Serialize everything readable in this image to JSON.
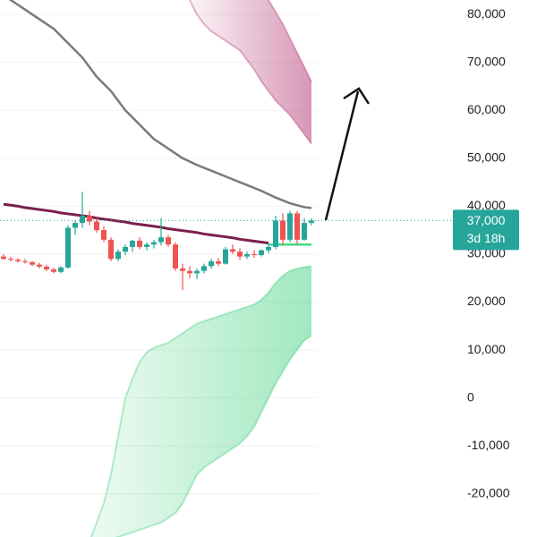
{
  "chart_data": {
    "type": "candlestick",
    "ylim": [
      -29000,
      83000
    ],
    "yticks": [
      {
        "value": -20000,
        "label": "-20,000"
      },
      {
        "value": -10000,
        "label": "-10,000"
      },
      0,
      {
        "value": 10000,
        "label": "10,000"
      },
      {
        "value": 20000,
        "label": "20,000"
      },
      {
        "value": 30000,
        "label": "30,000"
      },
      {
        "value": 40000,
        "label": "40,000"
      },
      {
        "value": 50000,
        "label": "50,000"
      },
      {
        "value": 60000,
        "label": "60,000"
      },
      {
        "value": 70000,
        "label": "70,000"
      },
      {
        "value": 80000,
        "label": "80,000"
      }
    ],
    "up_color": "#26a69a",
    "down_color": "#ef5350",
    "open": [
      29500,
      29000,
      28800,
      28500,
      28300,
      27800,
      27400,
      26800,
      26300,
      27200,
      35500,
      36500,
      38000,
      36800,
      35000,
      33000,
      29000,
      30500,
      31500,
      32800,
      31500,
      32000,
      32500,
      33500,
      32000,
      27000,
      26500,
      26000,
      26500,
      27500,
      28500,
      28000,
      31000,
      30500,
      29500,
      30000,
      29800,
      30800,
      31500,
      37000,
      33000,
      38500,
      33000,
      36500
    ],
    "high": [
      30000,
      29500,
      29200,
      29000,
      28600,
      28200,
      27800,
      27200,
      27500,
      36000,
      37000,
      43000,
      39000,
      37500,
      35800,
      33500,
      31000,
      32000,
      33000,
      33500,
      32500,
      33000,
      37500,
      34000,
      32500,
      28000,
      27500,
      27000,
      28000,
      29000,
      29200,
      31500,
      32000,
      31200,
      30500,
      30800,
      31000,
      32000,
      38000,
      38500,
      39000,
      39000,
      37500,
      37500
    ],
    "low": [
      28800,
      28500,
      28200,
      28000,
      27500,
      27000,
      26500,
      26000,
      26000,
      27000,
      34000,
      35500,
      36000,
      34500,
      32500,
      28500,
      28500,
      29800,
      30500,
      31000,
      30800,
      31200,
      31800,
      31500,
      26500,
      22500,
      25000,
      24800,
      26000,
      27000,
      27500,
      27800,
      30000,
      28800,
      29000,
      29200,
      29500,
      30200,
      31000,
      32000,
      32500,
      32000,
      32800,
      36000
    ],
    "close": [
      29000,
      28800,
      28500,
      28300,
      27800,
      27400,
      26800,
      26300,
      27200,
      35500,
      36500,
      38000,
      36800,
      35000,
      33000,
      29000,
      30500,
      31500,
      32800,
      31500,
      32000,
      32500,
      33500,
      32000,
      27000,
      26500,
      26000,
      26500,
      27500,
      28500,
      28000,
      31000,
      30500,
      29500,
      30000,
      29800,
      30800,
      31500,
      37000,
      33000,
      38500,
      33000,
      36500,
      37000
    ],
    "lines": [
      {
        "color": "#7a7a7a",
        "values": [
          84000,
          83000,
          82000,
          81000,
          80000,
          79000,
          78000,
          77000,
          75500,
          74000,
          72500,
          71000,
          69000,
          67000,
          65500,
          64000,
          62000,
          60000,
          58500,
          57000,
          55500,
          54000,
          53000,
          52000,
          51000,
          50000,
          49300,
          48600,
          48000,
          47400,
          46800,
          46200,
          45600,
          45000,
          44400,
          43800,
          43200,
          42500,
          41800,
          41200,
          40600,
          40200,
          39800,
          39600
        ]
      },
      {
        "color": "#7b1f4b",
        "values": [
          40400,
          40200,
          40000,
          39700,
          39500,
          39300,
          39100,
          38900,
          38600,
          38400,
          38200,
          38000,
          37800,
          37500,
          37300,
          37100,
          36900,
          36700,
          36400,
          36200,
          36000,
          35800,
          35600,
          35300,
          35100,
          34900,
          34700,
          34500,
          34200,
          34000,
          33800,
          33600,
          33400,
          33100,
          32900,
          32700,
          32500,
          32300,
          null,
          null,
          null,
          null,
          null,
          null
        ]
      },
      {
        "color": "#3ddc84",
        "values": [
          null,
          null,
          null,
          null,
          null,
          null,
          null,
          null,
          null,
          null,
          null,
          null,
          null,
          null,
          null,
          null,
          null,
          null,
          null,
          null,
          null,
          null,
          null,
          null,
          null,
          null,
          null,
          null,
          null,
          null,
          null,
          null,
          null,
          null,
          null,
          null,
          null,
          32000,
          32000,
          32000,
          32000,
          32000,
          32000,
          32000
        ]
      }
    ],
    "bands": [
      {
        "color": "#b0306e",
        "upper": [
          null,
          null,
          null,
          null,
          null,
          null,
          null,
          null,
          null,
          null,
          null,
          null,
          null,
          null,
          null,
          null,
          null,
          null,
          null,
          null,
          null,
          null,
          null,
          null,
          null,
          null,
          100000,
          99000,
          98000,
          97000,
          96000,
          95000,
          94000,
          92000,
          90000,
          88000,
          86000,
          83000,
          80500,
          78000,
          75000,
          72000,
          69000,
          66000
        ],
        "lower": [
          null,
          null,
          null,
          null,
          null,
          null,
          null,
          null,
          null,
          null,
          null,
          null,
          null,
          null,
          null,
          null,
          null,
          null,
          null,
          null,
          null,
          null,
          null,
          null,
          null,
          null,
          83000,
          80000,
          78000,
          76500,
          75500,
          74500,
          73500,
          72500,
          70500,
          68500,
          66000,
          64000,
          62000,
          60500,
          59000,
          57000,
          55000,
          53000
        ]
      },
      {
        "color": "#2ecc71",
        "upper": [
          null,
          null,
          null,
          null,
          null,
          null,
          null,
          null,
          null,
          null,
          null,
          null,
          -30000,
          -26000,
          -22000,
          -16000,
          -8000,
          0,
          4000,
          7500,
          9500,
          10500,
          11000,
          11500,
          12500,
          13500,
          14500,
          15500,
          16000,
          16500,
          17000,
          17500,
          18000,
          18500,
          19000,
          19500,
          20500,
          22000,
          24000,
          25500,
          26500,
          27000,
          27300,
          27500
        ],
        "lower": [
          null,
          null,
          null,
          null,
          null,
          null,
          null,
          null,
          null,
          null,
          null,
          null,
          -32000,
          -30500,
          -30000,
          -29500,
          -29000,
          -28500,
          -28000,
          -27500,
          -27000,
          -26500,
          -26000,
          -25000,
          -24000,
          -22000,
          -19000,
          -16000,
          -14500,
          -13500,
          -12500,
          -11500,
          -10500,
          -9500,
          -8000,
          -6000,
          -3000,
          0,
          3000,
          5500,
          8000,
          10000,
          12000,
          13000
        ]
      }
    ],
    "last_price": {
      "value": 37000,
      "label": "37,000",
      "color": "#26a69a"
    },
    "countdown": "3d 18h"
  }
}
